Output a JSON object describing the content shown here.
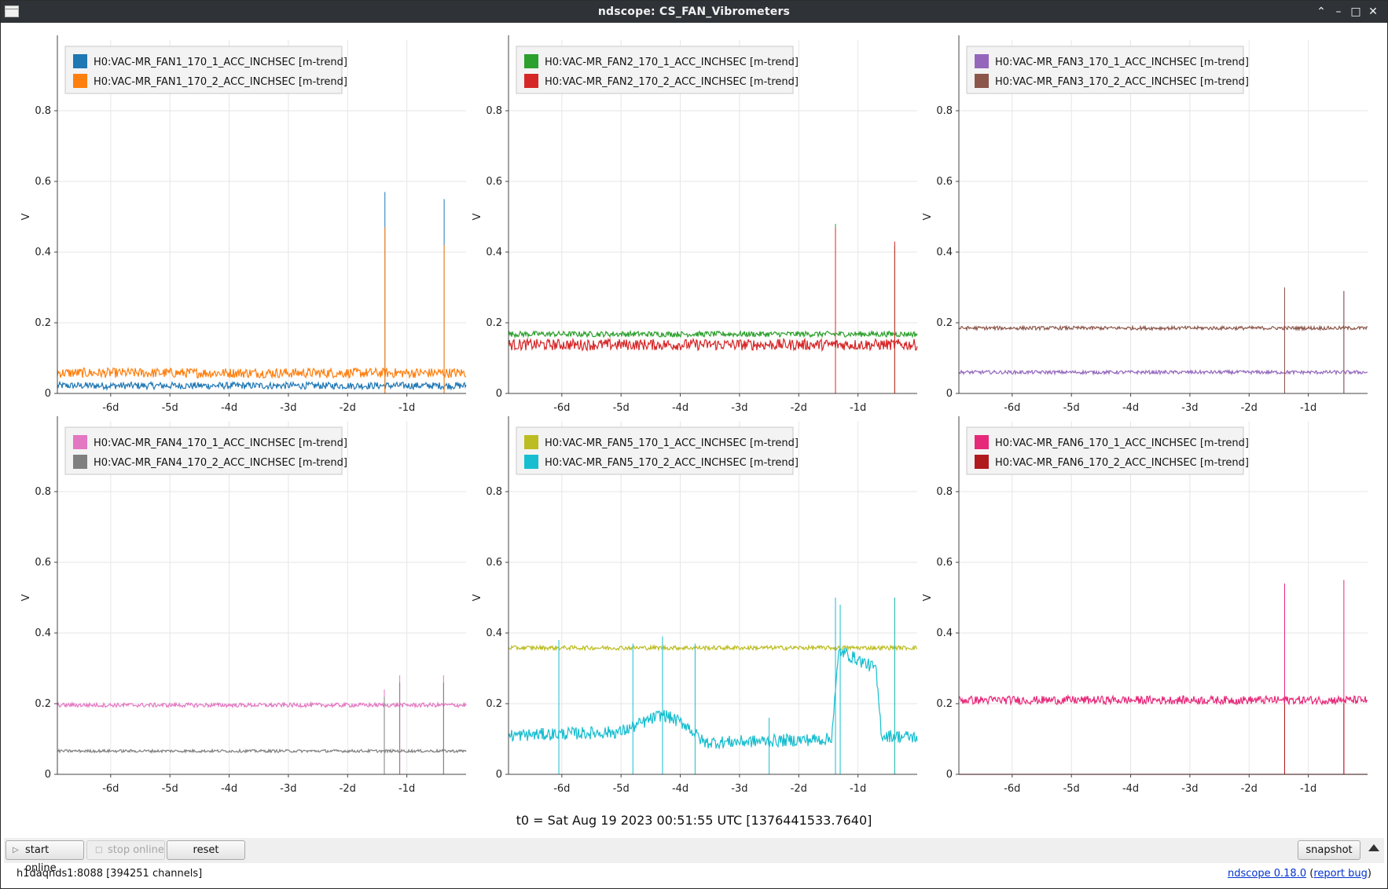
{
  "window": {
    "title": "ndscope: CS_FAN_Vibrometers"
  },
  "window_controls": {
    "collapse": "⌃",
    "minimize": "–",
    "maximize": "□",
    "close": "✕"
  },
  "t0_label": "t0 = Sat Aug 19 2023 00:51:55 UTC [1376441533.7640]",
  "toolbar": {
    "start_online": "start online",
    "stop_online": "stop online",
    "reset": "reset",
    "snapshot": "snapshot"
  },
  "status": {
    "server": "h1daqnds1:8088  [394251 channels]",
    "version_link": "ndscope 0.18.0",
    "report_bug": "report bug"
  },
  "chart_data": [
    {
      "type": "line",
      "ylabel": "V",
      "ylim": [
        0,
        1
      ],
      "xlim": [
        -6.9,
        0
      ],
      "yticks": [
        "0",
        "0.2",
        "0.4",
        "0.6",
        "0.8"
      ],
      "xticks": [
        "-6d",
        "-5d",
        "-4d",
        "-3d",
        "-2d",
        "-1d"
      ],
      "series": [
        {
          "name": "H0:VAC-MR_FAN1_170_1_ACC_INCHSEC [m-trend]",
          "color": "#1f77b4",
          "level": 0.022,
          "noise": 0.01,
          "spikes": [
            [
              -1.37,
              0.57
            ],
            [
              -0.37,
              0.55
            ]
          ]
        },
        {
          "name": "H0:VAC-MR_FAN1_170_2_ACC_INCHSEC [m-trend]",
          "color": "#ff7f0e",
          "level": 0.058,
          "noise": 0.014,
          "spikes": [
            [
              -1.37,
              0.47
            ],
            [
              -0.37,
              0.42
            ]
          ]
        }
      ]
    },
    {
      "type": "line",
      "ylabel": "V",
      "ylim": [
        0,
        1
      ],
      "xlim": [
        -6.9,
        0
      ],
      "yticks": [
        "0",
        "0.2",
        "0.4",
        "0.6",
        "0.8"
      ],
      "xticks": [
        "-6d",
        "-5d",
        "-4d",
        "-3d",
        "-2d",
        "-1d"
      ],
      "series": [
        {
          "name": "H0:VAC-MR_FAN2_170_1_ACC_INCHSEC [m-trend]",
          "color": "#2ca02c",
          "level": 0.168,
          "noise": 0.008,
          "spikes": [
            [
              -1.38,
              0.48
            ],
            [
              -0.38,
              0.42
            ]
          ]
        },
        {
          "name": "H0:VAC-MR_FAN2_170_2_ACC_INCHSEC [m-trend]",
          "color": "#d62728",
          "level": 0.138,
          "noise": 0.016,
          "spikes": [
            [
              -1.38,
              0.47
            ],
            [
              -0.38,
              0.43
            ]
          ]
        }
      ]
    },
    {
      "type": "line",
      "ylabel": "V",
      "ylim": [
        0,
        1
      ],
      "xlim": [
        -6.9,
        0
      ],
      "yticks": [
        "0",
        "0.2",
        "0.4",
        "0.6",
        "0.8"
      ],
      "xticks": [
        "-6d",
        "-5d",
        "-4d",
        "-3d",
        "-2d",
        "-1d"
      ],
      "series": [
        {
          "name": "H0:VAC-MR_FAN3_170_1_ACC_INCHSEC [m-trend]",
          "color": "#9467bd",
          "level": 0.06,
          "noise": 0.005,
          "spikes": [
            [
              -1.4,
              0.3
            ],
            [
              -0.4,
              0.29
            ]
          ]
        },
        {
          "name": "H0:VAC-MR_FAN3_170_2_ACC_INCHSEC [m-trend]",
          "color": "#8c564b",
          "level": 0.185,
          "noise": 0.005,
          "spikes": [
            [
              -1.4,
              0.3
            ],
            [
              -0.4,
              0.29
            ]
          ]
        }
      ]
    },
    {
      "type": "line",
      "ylabel": "V",
      "ylim": [
        0,
        1
      ],
      "xlim": [
        -6.9,
        0
      ],
      "yticks": [
        "0",
        "0.2",
        "0.4",
        "0.6",
        "0.8"
      ],
      "xticks": [
        "-6d",
        "-5d",
        "-4d",
        "-3d",
        "-2d",
        "-1d"
      ],
      "series": [
        {
          "name": "H0:VAC-MR_FAN4_170_1_ACC_INCHSEC [m-trend]",
          "color": "#e377c2",
          "level": 0.196,
          "noise": 0.006,
          "spikes": [
            [
              -1.38,
              0.24
            ],
            [
              -1.12,
              0.28
            ],
            [
              -0.38,
              0.28
            ]
          ]
        },
        {
          "name": "H0:VAC-MR_FAN4_170_2_ACC_INCHSEC [m-trend]",
          "color": "#7f7f7f",
          "level": 0.066,
          "noise": 0.004,
          "spikes": [
            [
              -1.38,
              0.22
            ],
            [
              -1.12,
              0.26
            ],
            [
              -0.38,
              0.26
            ]
          ]
        }
      ]
    },
    {
      "type": "line",
      "ylabel": "V",
      "ylim": [
        0,
        1
      ],
      "xlim": [
        -6.9,
        0
      ],
      "yticks": [
        "0",
        "0.2",
        "0.4",
        "0.6",
        "0.8"
      ],
      "xticks": [
        "-6d",
        "-5d",
        "-4d",
        "-3d",
        "-2d",
        "-1d"
      ],
      "series": [
        {
          "name": "H0:VAC-MR_FAN5_170_1_ACC_INCHSEC [m-trend]",
          "color": "#bcbd22",
          "level": 0.358,
          "noise": 0.006,
          "spikes": [
            [
              -1.38,
              0.5
            ],
            [
              -0.38,
              0.5
            ]
          ]
        },
        {
          "name": "H0:VAC-MR_FAN5_170_2_ACC_INCHSEC [m-trend]",
          "color": "#17becf",
          "level": 0.11,
          "noise": 0.018,
          "segments": [
            [
              -6.9,
              0.11
            ],
            [
              -5.0,
              0.12
            ],
            [
              -4.3,
              0.17
            ],
            [
              -3.9,
              0.14
            ],
            [
              -3.6,
              0.09
            ],
            [
              -2.4,
              0.095
            ],
            [
              -1.45,
              0.1
            ],
            [
              -1.32,
              0.35
            ],
            [
              -0.7,
              0.3
            ],
            [
              -0.6,
              0.11
            ],
            [
              0,
              0.105
            ]
          ],
          "spikes": [
            [
              -6.05,
              0.38
            ],
            [
              -4.8,
              0.37
            ],
            [
              -4.3,
              0.39
            ],
            [
              -3.75,
              0.37
            ],
            [
              -2.5,
              0.16
            ],
            [
              -1.38,
              0.5
            ],
            [
              -1.3,
              0.48
            ],
            [
              -0.38,
              0.5
            ]
          ]
        }
      ]
    },
    {
      "type": "line",
      "ylabel": "V",
      "ylim": [
        0,
        1
      ],
      "xlim": [
        -6.9,
        0
      ],
      "yticks": [
        "0",
        "0.2",
        "0.4",
        "0.6",
        "0.8"
      ],
      "xticks": [
        "-6d",
        "-5d",
        "-4d",
        "-3d",
        "-2d",
        "-1d"
      ],
      "series": [
        {
          "name": "H0:VAC-MR_FAN6_170_1_ACC_INCHSEC [m-trend]",
          "color": "#e7297a",
          "level": 0.21,
          "noise": 0.012,
          "spikes": [
            [
              -1.4,
              0.54
            ],
            [
              -0.4,
              0.55
            ]
          ]
        },
        {
          "name": "H0:VAC-MR_FAN6_170_2_ACC_INCHSEC [m-trend]",
          "color": "#b0191e",
          "level": 0.0,
          "noise": 0.0,
          "spikes": [
            [
              -1.4,
              0.2
            ],
            [
              -0.4,
              0.2
            ]
          ]
        }
      ]
    }
  ]
}
